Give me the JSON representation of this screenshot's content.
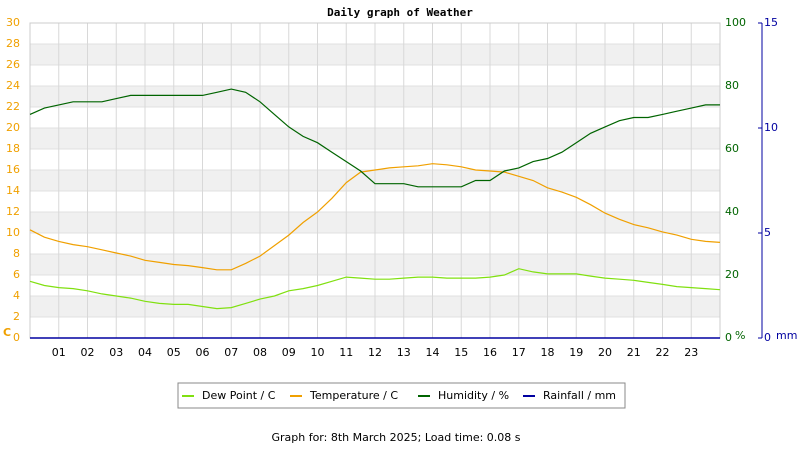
{
  "chart_data": {
    "type": "line",
    "title": "Daily graph of Weather",
    "x": [
      0,
      0.5,
      1,
      1.5,
      2,
      2.5,
      3,
      3.5,
      4,
      4.5,
      5,
      5.5,
      6,
      6.5,
      7,
      7.5,
      8,
      8.5,
      9,
      9.5,
      10,
      10.5,
      11,
      11.5,
      12,
      12.5,
      13,
      13.5,
      14,
      14.5,
      15,
      15.5,
      16,
      16.5,
      17,
      17.5,
      18,
      18.5,
      19,
      19.5,
      20,
      20.5,
      21,
      21.5,
      22,
      22.5,
      23,
      23.5,
      24
    ],
    "xlim": [
      0,
      24
    ],
    "xticks": [
      {
        "value": 1,
        "label": "01"
      },
      {
        "value": 2,
        "label": "02"
      },
      {
        "value": 3,
        "label": "03"
      },
      {
        "value": 4,
        "label": "04"
      },
      {
        "value": 5,
        "label": "05"
      },
      {
        "value": 6,
        "label": "06"
      },
      {
        "value": 7,
        "label": "07"
      },
      {
        "value": 8,
        "label": "08"
      },
      {
        "value": 9,
        "label": "09"
      },
      {
        "value": 10,
        "label": "10"
      },
      {
        "value": 11,
        "label": "11"
      },
      {
        "value": 12,
        "label": "12"
      },
      {
        "value": 13,
        "label": "13"
      },
      {
        "value": 14,
        "label": "14"
      },
      {
        "value": 15,
        "label": "15"
      },
      {
        "value": 16,
        "label": "16"
      },
      {
        "value": 17,
        "label": "17"
      },
      {
        "value": 18,
        "label": "18"
      },
      {
        "value": 19,
        "label": "19"
      },
      {
        "value": 20,
        "label": "20"
      },
      {
        "value": 21,
        "label": "21"
      },
      {
        "value": 22,
        "label": "22"
      },
      {
        "value": 23,
        "label": "23"
      }
    ],
    "ylim": [
      0,
      30
    ],
    "yticks": [
      0,
      2,
      4,
      6,
      8,
      10,
      12,
      14,
      16,
      18,
      20,
      22,
      24,
      26,
      28,
      30
    ],
    "y_label": "C",
    "y2lim": [
      0,
      100
    ],
    "y2ticks": [
      0,
      20,
      40,
      60,
      80,
      100
    ],
    "y2_label": "%",
    "y3lim": [
      0,
      15
    ],
    "y3ticks": [
      0,
      5,
      10,
      15
    ],
    "y3_label": "mm",
    "grid": true,
    "series": [
      {
        "name": "Dew Point / C",
        "color": "#80e010",
        "values": [
          5.4,
          5.0,
          4.8,
          4.7,
          4.5,
          4.2,
          4.0,
          3.8,
          3.5,
          3.3,
          3.2,
          3.2,
          3.0,
          2.8,
          2.9,
          3.3,
          3.7,
          4.0,
          4.5,
          4.7,
          5.0,
          5.4,
          5.8,
          5.7,
          5.6,
          5.6,
          5.7,
          5.8,
          5.8,
          5.7,
          5.7,
          5.7,
          5.8,
          6.0,
          6.6,
          6.3,
          6.1,
          6.1,
          6.1,
          5.9,
          5.7,
          5.6,
          5.5,
          5.3,
          5.1,
          4.9,
          4.8,
          4.7,
          4.6
        ]
      },
      {
        "name": "Temperature / C",
        "color": "#f0a000",
        "values": [
          10.3,
          9.6,
          9.2,
          8.9,
          8.7,
          8.4,
          8.1,
          7.8,
          7.4,
          7.2,
          7.0,
          6.9,
          6.7,
          6.5,
          6.5,
          7.1,
          7.8,
          8.8,
          9.8,
          11.0,
          12.0,
          13.3,
          14.8,
          15.8,
          16.0,
          16.2,
          16.3,
          16.4,
          16.6,
          16.5,
          16.3,
          16.0,
          15.9,
          15.8,
          15.4,
          15.0,
          14.3,
          13.9,
          13.4,
          12.7,
          11.9,
          11.3,
          10.8,
          10.5,
          10.1,
          9.8,
          9.4,
          9.2,
          9.1
        ]
      },
      {
        "name": "Humidity / %",
        "color": "#006400",
        "axis": "y2",
        "values": [
          71,
          73,
          74,
          75,
          75,
          75,
          76,
          77,
          77,
          77,
          77,
          77,
          77,
          78,
          79,
          78,
          75,
          71,
          67,
          64,
          62,
          59,
          56,
          53,
          49,
          49,
          49,
          48,
          48,
          48,
          48,
          50,
          50,
          53,
          54,
          56,
          57,
          59,
          62,
          65,
          67,
          69,
          70,
          70,
          71,
          72,
          73,
          74,
          74
        ]
      },
      {
        "name": "Rainfall / mm",
        "color": "#0000a0",
        "axis": "y3",
        "values": [
          0,
          0,
          0,
          0,
          0,
          0,
          0,
          0,
          0,
          0,
          0,
          0,
          0,
          0,
          0,
          0,
          0,
          0,
          0,
          0,
          0,
          0,
          0,
          0,
          0,
          0,
          0,
          0,
          0,
          0,
          0,
          0,
          0,
          0,
          0,
          0,
          0,
          0,
          0,
          0,
          0,
          0,
          0,
          0,
          0,
          0,
          0,
          0,
          0
        ]
      }
    ],
    "footer": "Graph for: 8th March 2025; Load time: 0.08 s"
  }
}
